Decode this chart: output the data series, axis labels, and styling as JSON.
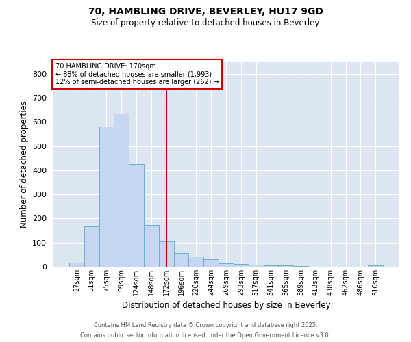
{
  "title_line1": "70, HAMBLING DRIVE, BEVERLEY, HU17 9GD",
  "title_line2": "Size of property relative to detached houses in Beverley",
  "xlabel": "Distribution of detached houses by size in Beverley",
  "ylabel": "Number of detached properties",
  "annotation_line1": "70 HAMBLING DRIVE: 170sqm",
  "annotation_line2": "← 88% of detached houses are smaller (1,993)",
  "annotation_line3": "12% of semi-detached houses are larger (262) →",
  "bar_labels": [
    "27sqm",
    "51sqm",
    "75sqm",
    "99sqm",
    "124sqm",
    "148sqm",
    "172sqm",
    "196sqm",
    "220sqm",
    "244sqm",
    "269sqm",
    "293sqm",
    "317sqm",
    "341sqm",
    "365sqm",
    "389sqm",
    "413sqm",
    "438sqm",
    "462sqm",
    "486sqm",
    "510sqm"
  ],
  "bar_values": [
    18,
    168,
    580,
    635,
    425,
    172,
    105,
    57,
    42,
    30,
    15,
    10,
    9,
    7,
    5,
    3,
    1,
    0,
    0,
    0,
    5
  ],
  "bar_color": "#c5d8ef",
  "bar_edgecolor": "#6baed6",
  "vline_color": "#cc0000",
  "vline_bar_index": 6,
  "background_color": "#dce6f0",
  "ylim": [
    0,
    850
  ],
  "yticks": [
    0,
    100,
    200,
    300,
    400,
    500,
    600,
    700,
    800
  ],
  "footnote1": "Contains HM Land Registry data © Crown copyright and database right 2025.",
  "footnote2": "Contains public sector information licensed under the Open Government Licence v3.0."
}
